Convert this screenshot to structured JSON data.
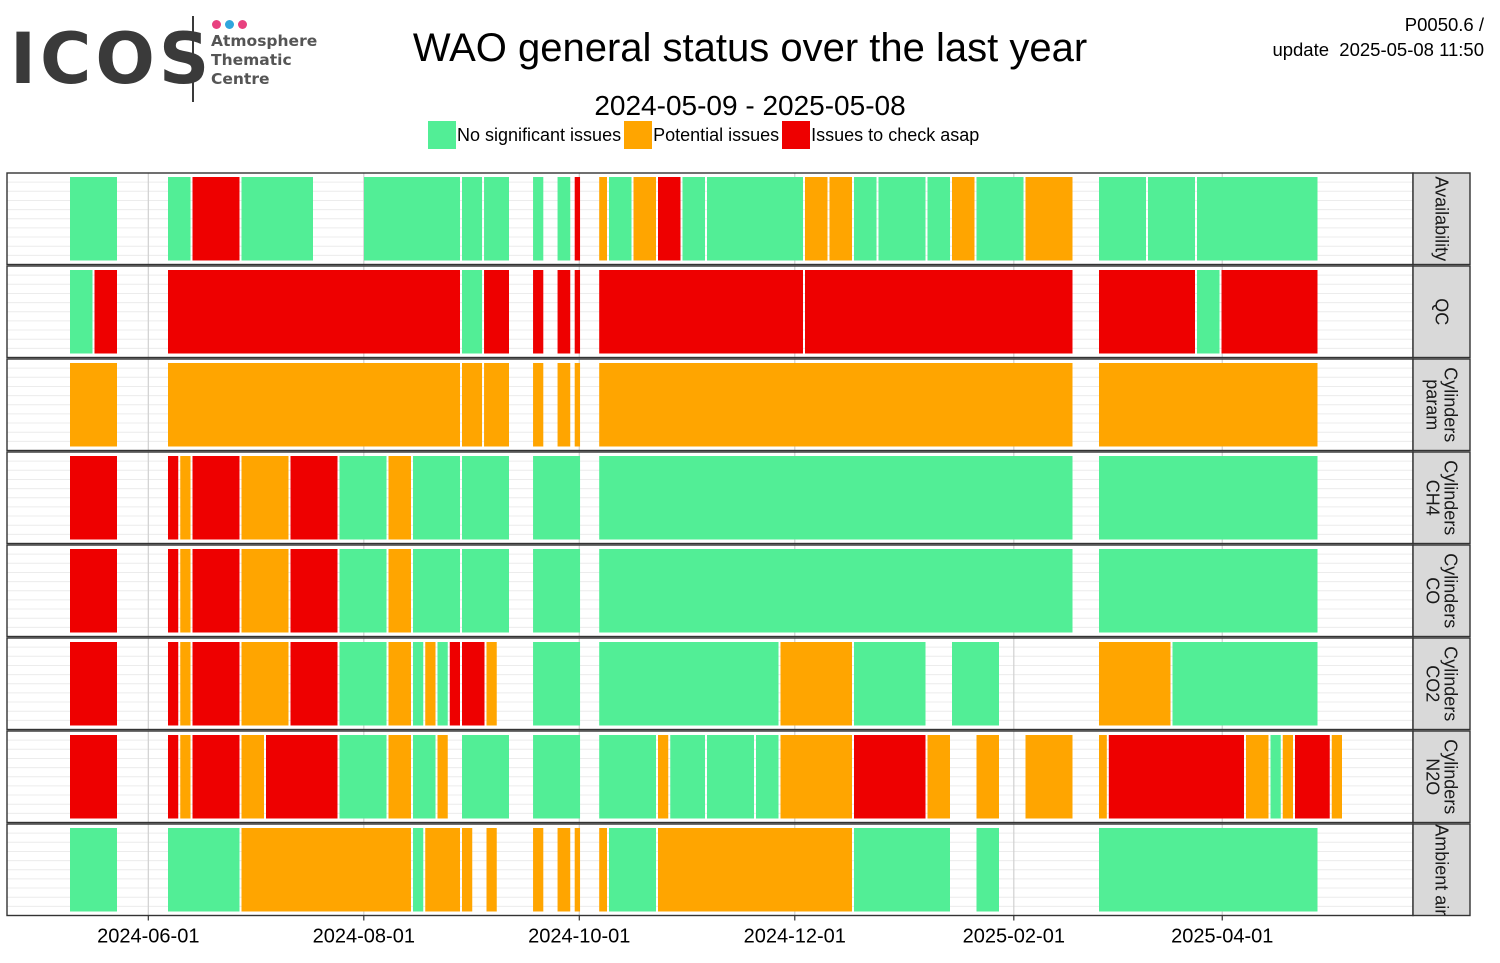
{
  "logo": {
    "wordmark": "ICOS",
    "line1": "Atmosphere",
    "line2": "Thematic",
    "line3": "Centre",
    "dot_colors": [
      "#e8417f",
      "#2fa6dd",
      "#e8417f"
    ]
  },
  "header": {
    "title": "WAO general status over the last year",
    "period": "2024-05-09 - 2025-05-08",
    "meta_line1": "P0050.6 /",
    "meta_line2": "update  2025-05-08 11:50"
  },
  "legend": [
    {
      "key": "G",
      "label": "No significant issues",
      "color": "#52ee96"
    },
    {
      "key": "O",
      "label": "Potential issues",
      "color": "#ffa500"
    },
    {
      "key": "R",
      "label": "Issues to check asap",
      "color": "#ee0000"
    }
  ],
  "chart_data": {
    "type": "heatmap",
    "title": "WAO general status over the last year",
    "subtitle": "2024-05-09 - 2025-05-08",
    "x_axis": {
      "type": "date",
      "range": [
        "2024-04-22",
        "2025-05-25"
      ],
      "ticks": [
        "2024-06-01",
        "2024-08-01",
        "2024-10-01",
        "2024-12-01",
        "2025-02-01",
        "2025-04-01"
      ]
    },
    "color_legend": {
      "G": "No significant issues",
      "O": "Potential issues",
      "R": "Issues to check asap"
    },
    "columns": [
      "2024-05-09",
      "2024-05-13",
      "2024-05-20",
      "2024-05-27",
      "2024-06-03",
      "2024-06-10",
      "2024-06-17",
      "2024-06-24",
      "2024-07-01",
      "2024-07-08",
      "2024-07-15",
      "2024-07-22",
      "2024-07-29",
      "2024-08-05",
      "2024-08-12",
      "2024-08-19",
      "2024-09-02",
      "2024-09-09",
      "2024-09-16",
      "2024-09-23",
      "2024-09-30",
      "2024-10-07",
      "2024-10-14",
      "2024-10-21",
      "2024-10-28",
      "2024-11-04",
      "2024-11-11",
      "2024-11-18",
      "2024-11-25",
      "2024-12-02",
      "2024-12-09",
      "2024-12-16",
      "2024-12-23",
      "2024-12-30",
      "2025-01-06",
      "2025-01-13",
      "2025-01-20",
      "2025-02-03",
      "2025-02-10",
      "2025-02-17",
      "2025-02-24",
      "2025-03-03",
      "2025-03-10",
      "2025-03-17",
      "2025-03-24",
      "2025-03-31",
      "2025-04-07",
      "2025-04-14",
      "2025-04-21",
      "2025-04-28",
      "2025-05-05"
    ],
    "rows": [
      {
        "label": "Availability",
        "segments": [
          [
            0,
            2,
            "G"
          ],
          [
            4,
            5,
            "G"
          ],
          [
            5,
            7,
            "R"
          ],
          [
            7,
            10,
            "G"
          ],
          [
            12,
            16,
            "G"
          ],
          [
            16,
            16.9,
            "G"
          ],
          [
            16.9,
            18,
            "G"
          ],
          [
            18.9,
            19.4,
            "G"
          ],
          [
            19.9,
            20.5,
            "G"
          ],
          [
            20.6,
            20.9,
            "R"
          ],
          [
            21.6,
            22,
            "O"
          ],
          [
            22,
            23,
            "G"
          ],
          [
            23,
            24,
            "O"
          ],
          [
            24,
            25,
            "R"
          ],
          [
            25,
            26,
            "G"
          ],
          [
            26,
            30,
            "G"
          ],
          [
            30,
            31,
            "O"
          ],
          [
            31,
            32,
            "O"
          ],
          [
            32,
            33,
            "G"
          ],
          [
            33,
            35,
            "G"
          ],
          [
            35,
            36,
            "G"
          ],
          [
            36,
            37,
            "O"
          ],
          [
            37,
            39,
            "G"
          ],
          [
            39,
            41,
            "O"
          ],
          [
            42,
            44,
            "G"
          ],
          [
            44,
            46,
            "G"
          ],
          [
            46,
            51,
            "G"
          ]
        ]
      },
      {
        "label": "QC",
        "segments": [
          [
            0,
            1,
            "G"
          ],
          [
            1,
            2,
            "R"
          ],
          [
            4,
            16,
            "R"
          ],
          [
            16,
            16.9,
            "G"
          ],
          [
            16.9,
            18,
            "R"
          ],
          [
            18.9,
            19.4,
            "R"
          ],
          [
            19.9,
            20.5,
            "R"
          ],
          [
            20.6,
            20.9,
            "R"
          ],
          [
            21.6,
            30,
            "R"
          ],
          [
            30,
            41,
            "R"
          ],
          [
            42,
            46,
            "R"
          ],
          [
            46,
            47,
            "G"
          ],
          [
            47,
            51,
            "R"
          ]
        ]
      },
      {
        "label": "Cylinders param",
        "segments": [
          [
            0,
            2,
            "O"
          ],
          [
            4,
            16,
            "O"
          ],
          [
            16,
            16.9,
            "O"
          ],
          [
            16.9,
            18,
            "O"
          ],
          [
            18.9,
            19.4,
            "O"
          ],
          [
            19.9,
            20.5,
            "O"
          ],
          [
            20.6,
            20.9,
            "O"
          ],
          [
            21.6,
            41,
            "O"
          ],
          [
            42,
            51,
            "O"
          ]
        ]
      },
      {
        "label": "Cylinders CH4",
        "segments": [
          [
            0,
            2,
            "R"
          ],
          [
            4,
            4.5,
            "R"
          ],
          [
            4.5,
            5,
            "O"
          ],
          [
            5,
            7,
            "R"
          ],
          [
            7,
            9,
            "O"
          ],
          [
            9,
            11,
            "R"
          ],
          [
            11,
            13,
            "G"
          ],
          [
            13,
            14,
            "O"
          ],
          [
            14,
            16,
            "G"
          ],
          [
            16,
            18,
            "G"
          ],
          [
            18.9,
            20.9,
            "G"
          ],
          [
            21.6,
            41,
            "G"
          ],
          [
            42,
            51,
            "G"
          ]
        ]
      },
      {
        "label": "Cylinders CO",
        "segments": [
          [
            0,
            2,
            "R"
          ],
          [
            4,
            4.5,
            "R"
          ],
          [
            4.5,
            5,
            "O"
          ],
          [
            5,
            7,
            "R"
          ],
          [
            7,
            9,
            "O"
          ],
          [
            9,
            11,
            "R"
          ],
          [
            11,
            13,
            "G"
          ],
          [
            13,
            14,
            "O"
          ],
          [
            14,
            16,
            "G"
          ],
          [
            16,
            18,
            "G"
          ],
          [
            18.9,
            20.9,
            "G"
          ],
          [
            21.6,
            41,
            "G"
          ],
          [
            42,
            51,
            "G"
          ]
        ]
      },
      {
        "label": "Cylinders CO2",
        "segments": [
          [
            0,
            2,
            "R"
          ],
          [
            4,
            4.5,
            "R"
          ],
          [
            4.5,
            5,
            "O"
          ],
          [
            5,
            7,
            "R"
          ],
          [
            7,
            9,
            "O"
          ],
          [
            9,
            11,
            "R"
          ],
          [
            11,
            13,
            "G"
          ],
          [
            13,
            14,
            "O"
          ],
          [
            14,
            14.5,
            "G"
          ],
          [
            14.5,
            15,
            "O"
          ],
          [
            15,
            15.5,
            "G"
          ],
          [
            15.5,
            16,
            "R"
          ],
          [
            16,
            17,
            "R"
          ],
          [
            17,
            17.5,
            "O"
          ],
          [
            18.9,
            20.9,
            "G"
          ],
          [
            21.6,
            29,
            "G"
          ],
          [
            29,
            32,
            "O"
          ],
          [
            32,
            35,
            "G"
          ],
          [
            36,
            38,
            "G"
          ],
          [
            42,
            45,
            "O"
          ],
          [
            45,
            51,
            "G"
          ]
        ]
      },
      {
        "label": "Cylinders N2O",
        "segments": [
          [
            0,
            2,
            "R"
          ],
          [
            4,
            4.5,
            "R"
          ],
          [
            4.5,
            5,
            "O"
          ],
          [
            5,
            7,
            "R"
          ],
          [
            7,
            8,
            "O"
          ],
          [
            8,
            11,
            "R"
          ],
          [
            11,
            13,
            "G"
          ],
          [
            13,
            14,
            "O"
          ],
          [
            14,
            15,
            "G"
          ],
          [
            15,
            15.5,
            "O"
          ],
          [
            16,
            18,
            "G"
          ],
          [
            18.9,
            20.9,
            "G"
          ],
          [
            21.6,
            24,
            "G"
          ],
          [
            24,
            24.5,
            "O"
          ],
          [
            24.5,
            26,
            "G"
          ],
          [
            26,
            28,
            "G"
          ],
          [
            28,
            29,
            "G"
          ],
          [
            29,
            32,
            "O"
          ],
          [
            32,
            35,
            "R"
          ],
          [
            35,
            36,
            "O"
          ],
          [
            37,
            38,
            "O"
          ],
          [
            39,
            41,
            "O"
          ],
          [
            42,
            42.4,
            "O"
          ],
          [
            42.4,
            48,
            "R"
          ],
          [
            48,
            49,
            "O"
          ],
          [
            49,
            49.5,
            "G"
          ],
          [
            49.5,
            50,
            "O"
          ],
          [
            50,
            51.5,
            "R"
          ],
          [
            51.5,
            52,
            "O"
          ]
        ]
      },
      {
        "label": "Ambient air",
        "segments": [
          [
            0,
            2,
            "G"
          ],
          [
            4,
            7,
            "G"
          ],
          [
            7,
            14,
            "O"
          ],
          [
            14,
            14.5,
            "G"
          ],
          [
            14.5,
            16,
            "O"
          ],
          [
            16,
            16.5,
            "O"
          ],
          [
            17,
            17.5,
            "O"
          ],
          [
            18.9,
            19.4,
            "O"
          ],
          [
            19.9,
            20.5,
            "O"
          ],
          [
            20.6,
            20.9,
            "O"
          ],
          [
            21.6,
            22,
            "O"
          ],
          [
            22,
            24,
            "G"
          ],
          [
            24,
            32,
            "O"
          ],
          [
            32,
            36,
            "G"
          ],
          [
            37,
            38,
            "G"
          ],
          [
            42,
            51,
            "G"
          ]
        ]
      }
    ]
  }
}
